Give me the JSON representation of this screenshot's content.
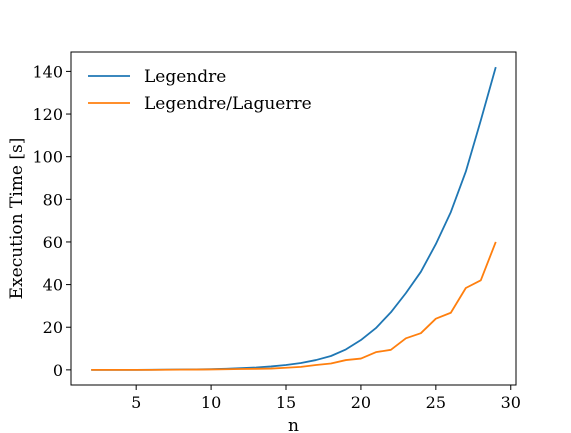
{
  "chart_data": {
    "type": "line",
    "xlabel": "n",
    "ylabel": "Execution Time [s]",
    "xlim": [
      0.65,
      30.35
    ],
    "ylim": [
      -7.1,
      149.1
    ],
    "xticks": [
      5,
      10,
      15,
      20,
      25,
      30
    ],
    "yticks": [
      0,
      20,
      40,
      60,
      80,
      100,
      120,
      140
    ],
    "legend_position": "top-left",
    "x": [
      2,
      3,
      4,
      5,
      6,
      7,
      8,
      9,
      10,
      11,
      12,
      13,
      14,
      15,
      16,
      17,
      18,
      19,
      20,
      21,
      22,
      23,
      24,
      25,
      26,
      27,
      28,
      29
    ],
    "series": [
      {
        "name": "Legendre",
        "color": "#1f77b4",
        "values": [
          0.0,
          0.0,
          0.0,
          0.0,
          0.05,
          0.1,
          0.15,
          0.2,
          0.35,
          0.5,
          0.8,
          1.1,
          1.6,
          2.3,
          3.2,
          4.6,
          6.5,
          9.6,
          14.0,
          19.6,
          27.0,
          36.0,
          46.0,
          59.0,
          74.0,
          93.0,
          117.0,
          142.0
        ]
      },
      {
        "name": "Legendre/Laguerre",
        "color": "#ff7f0e",
        "values": [
          0.0,
          0.0,
          0.0,
          0.0,
          0.0,
          0.05,
          0.1,
          0.15,
          0.2,
          0.3,
          0.4,
          0.5,
          0.6,
          1.0,
          1.4,
          2.3,
          3.0,
          4.6,
          5.3,
          8.3,
          9.4,
          14.8,
          17.2,
          24.0,
          26.8,
          38.4,
          42.0,
          60.0
        ]
      }
    ]
  }
}
